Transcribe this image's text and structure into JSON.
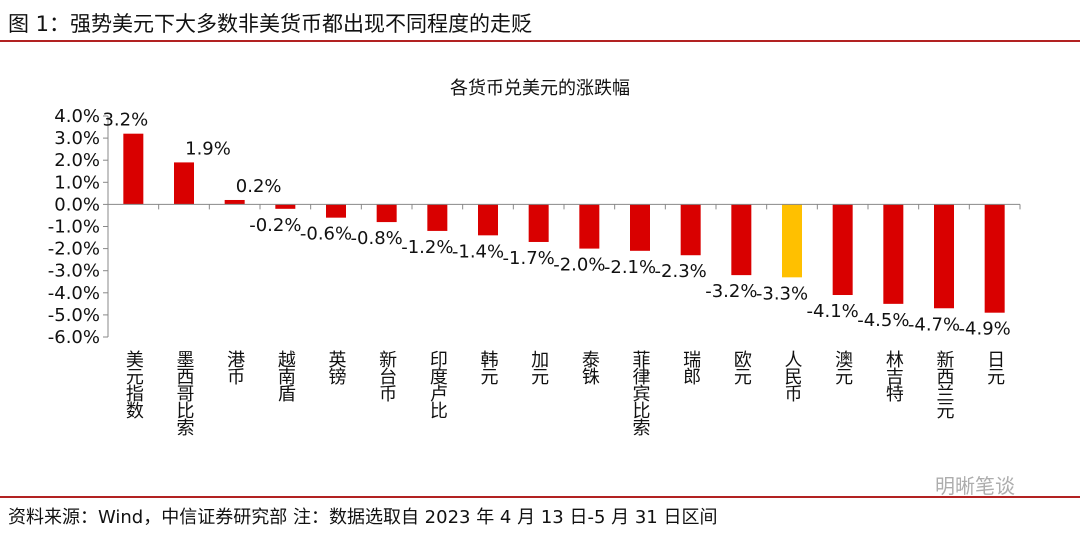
{
  "figure_title": "图 1：强势美元下大多数非美货币都出现不同程度的走贬",
  "source_note": "资料来源：Wind，中信证券研究部 注：数据选取自 2023 年 4 月 13 日-5 月 31 日区间",
  "watermark": "明晰笔谈",
  "colors": {
    "bar": "#d90000",
    "highlight": "#ffc000",
    "rule": "#b22222"
  },
  "chart_data": {
    "type": "bar",
    "title": "各货币兑美元的涨跌幅",
    "categories": [
      "美元指数",
      "墨西哥比索",
      "港币",
      "越南盾",
      "英镑",
      "新台币",
      "印度卢比",
      "韩元",
      "加元",
      "泰铢",
      "菲律宾比索",
      "瑞郎",
      "欧元",
      "人民币",
      "澳元",
      "林吉特",
      "新西兰元",
      "日元"
    ],
    "values": [
      3.2,
      1.9,
      0.2,
      -0.2,
      -0.6,
      -0.8,
      -1.2,
      -1.4,
      -1.7,
      -2.0,
      -2.1,
      -2.3,
      -3.2,
      -3.3,
      -4.1,
      -4.5,
      -4.7,
      -4.9
    ],
    "data_labels": [
      "3.2%",
      "1.9%",
      "0.2%",
      "-0.2%",
      "-0.6%",
      "-0.8%",
      "-1.2%",
      "-1.4%",
      "-1.7%",
      "-2.0%",
      "-2.1%",
      "-2.3%",
      "-3.2%",
      "-3.3%",
      "-4.1%",
      "-4.5%",
      "-4.7%",
      "-4.9%"
    ],
    "highlight_category": "人民币",
    "yticks": [
      "4.0%",
      "3.0%",
      "2.0%",
      "1.0%",
      "0.0%",
      "-1.0%",
      "-2.0%",
      "-3.0%",
      "-4.0%",
      "-5.0%",
      "-6.0%"
    ],
    "ylim": [
      -6,
      4
    ],
    "unit": "%",
    "grid": false,
    "legend": "none"
  }
}
